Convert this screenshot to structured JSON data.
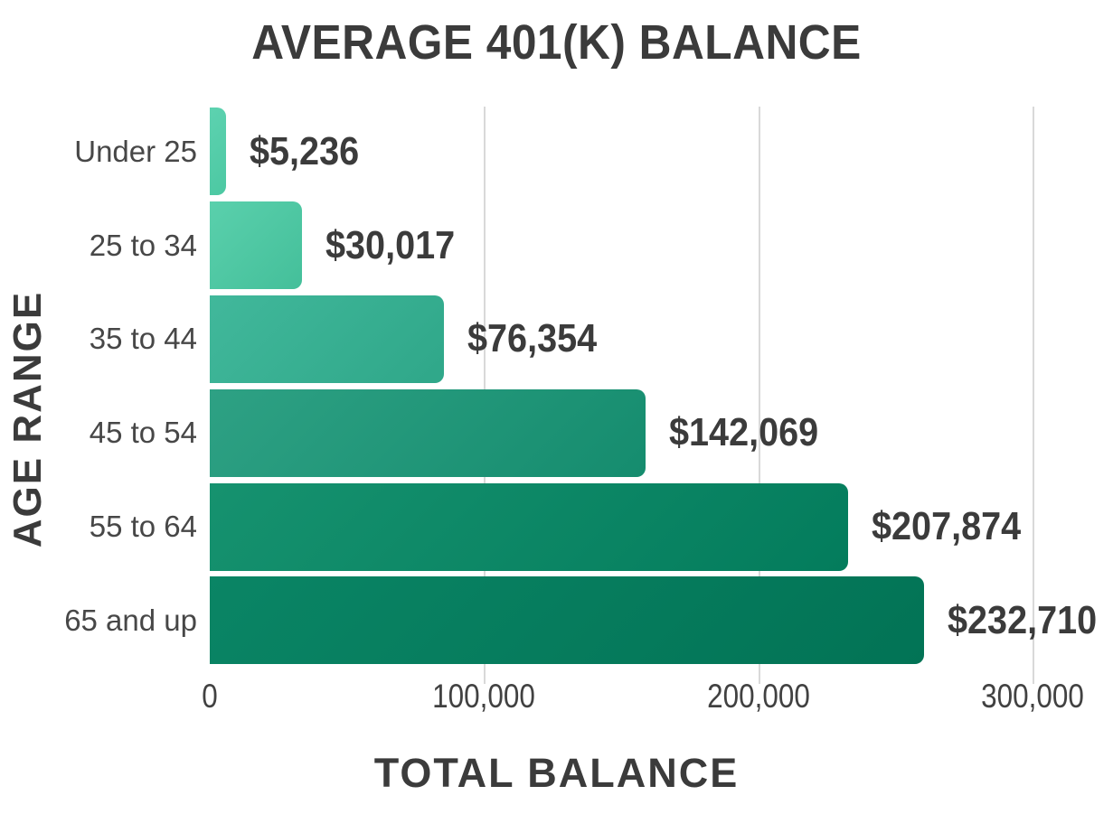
{
  "title": "AVERAGE 401(K) BALANCE",
  "chart_data": {
    "type": "bar",
    "orientation": "horizontal",
    "title": "AVERAGE 401(K) BALANCE",
    "xlabel": "TOTAL BALANCE",
    "ylabel": "AGE RANGE",
    "categories": [
      "Under 25",
      "25 to 34",
      "35 to 44",
      "45 to 54",
      "55 to 64",
      "65 and up"
    ],
    "values": [
      5236,
      30017,
      76354,
      142069,
      207874,
      232710
    ],
    "value_labels": [
      "$5,236",
      "$30,017",
      "$76,354",
      "$142,069",
      "$207,874",
      "$232,710"
    ],
    "bar_gradients": [
      {
        "from": "#5dd2b0",
        "to": "#4cc8a2"
      },
      {
        "from": "#5ad0ac",
        "to": "#44bf9a"
      },
      {
        "from": "#41b89b",
        "to": "#2fa789"
      },
      {
        "from": "#2ea184",
        "to": "#158c6e"
      },
      {
        "from": "#16926f",
        "to": "#037c5c"
      },
      {
        "from": "#0a8565",
        "to": "#027355"
      }
    ],
    "x_ticks": [
      {
        "value": 0,
        "label": "0"
      },
      {
        "value": 100000,
        "label": "100,000"
      },
      {
        "value": 200000,
        "label": "200,000"
      },
      {
        "value": 300000,
        "label": "300,000"
      }
    ],
    "xlim": [
      0,
      300000
    ],
    "grid": "vertical",
    "gridline_color": "#d9d9d9",
    "text_color": "#3b3b3b",
    "background": "#ffffff",
    "legend": "none"
  }
}
